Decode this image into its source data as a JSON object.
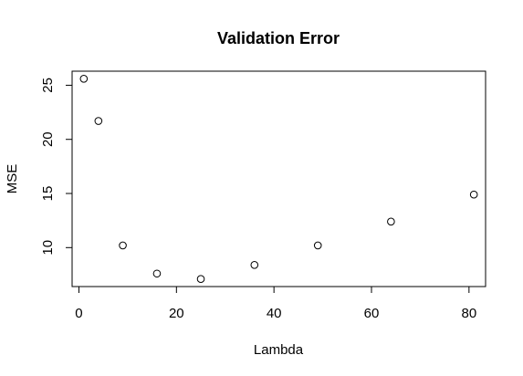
{
  "chart_data": {
    "type": "scatter",
    "title": "Validation Error",
    "xlabel": "Lambda",
    "ylabel": "MSE",
    "x": [
      1,
      4,
      9,
      16,
      25,
      36,
      49,
      64,
      81
    ],
    "y": [
      25.6,
      21.7,
      10.2,
      7.6,
      7.1,
      8.4,
      10.2,
      12.4,
      14.9
    ],
    "xlim": [
      -1.4,
      83.4
    ],
    "ylim": [
      6.4,
      26.3
    ],
    "xticks": [
      0,
      20,
      40,
      60,
      80
    ],
    "xtick_labels": [
      "0",
      "20",
      "40",
      "60",
      "80"
    ],
    "yticks": [
      10,
      15,
      20,
      25
    ],
    "ytick_labels": [
      "10",
      "15",
      "20",
      "25"
    ],
    "grid": false,
    "legend": "none",
    "colors": {
      "background": "#ffffff",
      "foreground": "#000000"
    }
  }
}
